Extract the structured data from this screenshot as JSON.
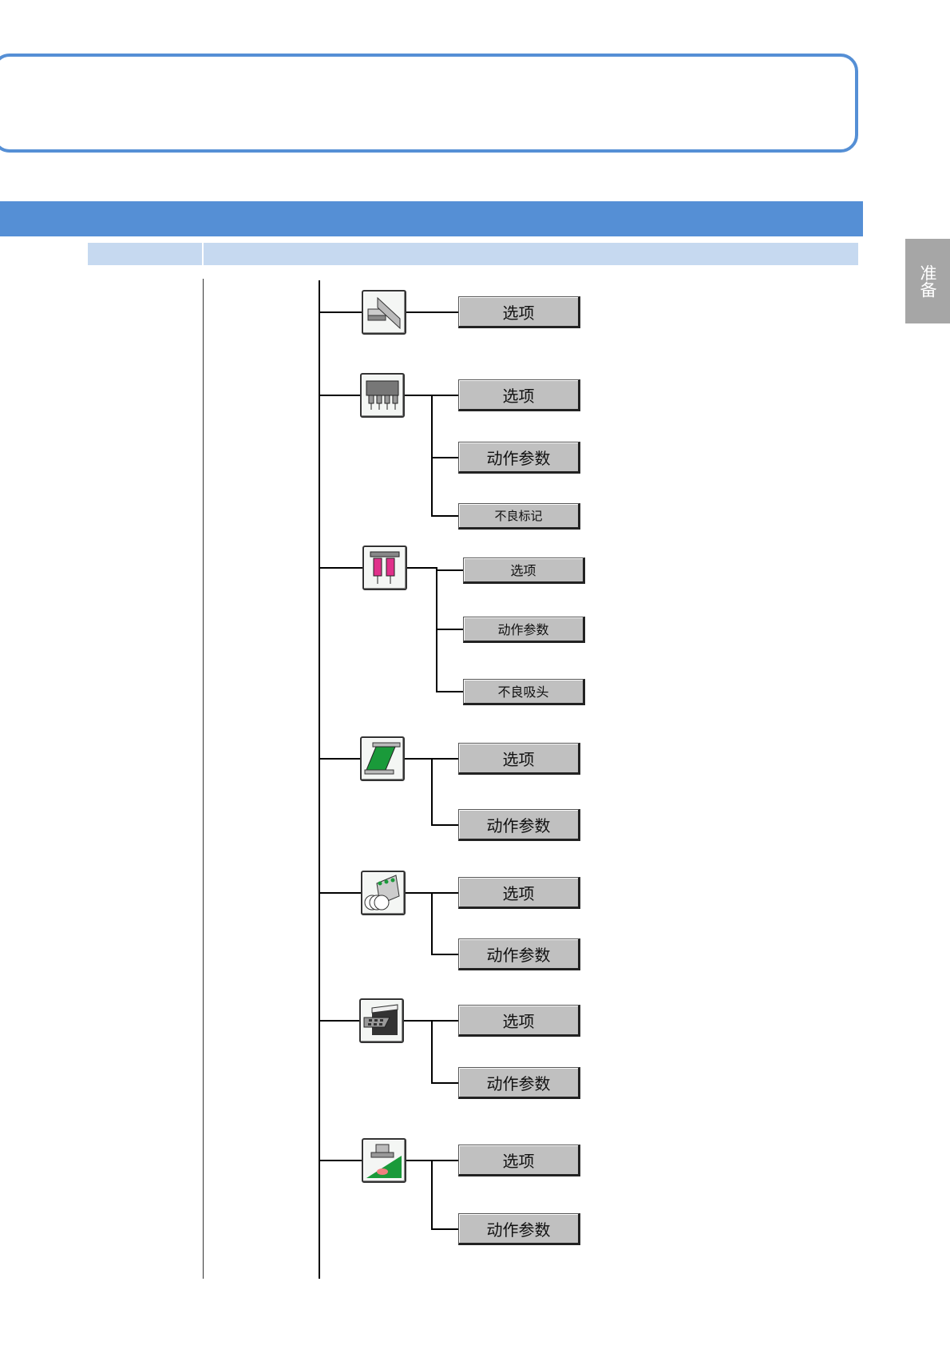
{
  "side_tab": {
    "label": "准备"
  },
  "tree": [
    {
      "icon": "conveyor-rail-icon",
      "buttons": [
        "选项"
      ]
    },
    {
      "icon": "nozzle-head-icon",
      "buttons": [
        "选项",
        "动作参数",
        "不良标记"
      ]
    },
    {
      "icon": "pickup-nozzle-icon",
      "buttons": [
        "选项",
        "动作参数",
        "不良吸头"
      ]
    },
    {
      "icon": "board-support-icon",
      "buttons": [
        "选项",
        "动作参数"
      ]
    },
    {
      "icon": "tape-feeder-icon",
      "buttons": [
        "选项",
        "动作参数"
      ]
    },
    {
      "icon": "tray-feeder-icon",
      "buttons": [
        "选项",
        "动作参数"
      ]
    },
    {
      "icon": "dispenser-board-icon",
      "buttons": [
        "选项",
        "动作参数"
      ]
    }
  ],
  "colors": {
    "accent": "#558fd5",
    "light_band": "#c6d9f0",
    "side_tab": "#a6a6a6",
    "button": "#c0c0c0"
  }
}
